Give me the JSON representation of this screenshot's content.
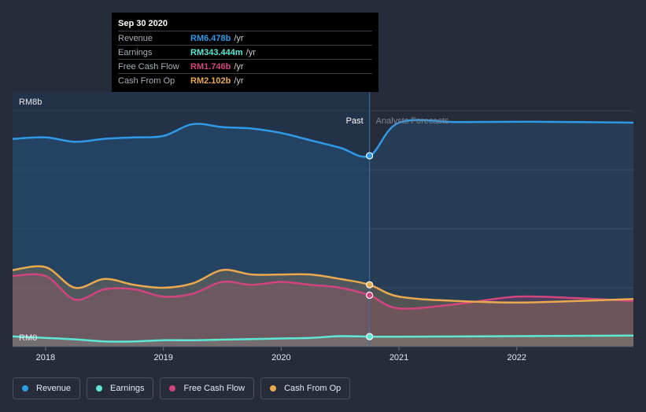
{
  "tooltip": {
    "date": "Sep 30 2020",
    "rows": [
      {
        "label": "Revenue",
        "value": "RM6.478b",
        "unit": "/yr",
        "color": "#2f9ae8"
      },
      {
        "label": "Earnings",
        "value": "RM343.444m",
        "unit": "/yr",
        "color": "#5ee8d3"
      },
      {
        "label": "Free Cash Flow",
        "value": "RM1.746b",
        "unit": "/yr",
        "color": "#d1457f"
      },
      {
        "label": "Cash From Op",
        "value": "RM2.102b",
        "unit": "/yr",
        "color": "#e8a94f"
      }
    ]
  },
  "labels": {
    "past": "Past",
    "forecast": "Analysts Forecasts"
  },
  "legend": [
    {
      "label": "Revenue",
      "color": "#2f9ae8"
    },
    {
      "label": "Earnings",
      "color": "#5ee8d3"
    },
    {
      "label": "Free Cash Flow",
      "color": "#d1457f"
    },
    {
      "label": "Cash From Op",
      "color": "#e8a94f"
    }
  ],
  "chart_data": {
    "type": "area",
    "y_tick_labels": [
      "RM8b",
      "RM0"
    ],
    "x_tick_labels": [
      "2018",
      "2019",
      "2020",
      "2021",
      "2022"
    ],
    "xlim": [
      2017.72,
      2022.99
    ],
    "ylim": [
      0,
      8
    ],
    "y_grid_values": [
      2,
      4,
      6,
      8
    ],
    "past_until": 2020.75,
    "series": [
      {
        "name": "Revenue",
        "color": "#2f9ae8",
        "points": [
          [
            2017.72,
            7.05
          ],
          [
            2018.0,
            7.1
          ],
          [
            2018.25,
            6.95
          ],
          [
            2018.5,
            7.05
          ],
          [
            2018.75,
            7.1
          ],
          [
            2019.0,
            7.15
          ],
          [
            2019.25,
            7.55
          ],
          [
            2019.5,
            7.45
          ],
          [
            2019.75,
            7.4
          ],
          [
            2020.0,
            7.25
          ],
          [
            2020.25,
            7.0
          ],
          [
            2020.5,
            6.75
          ],
          [
            2020.75,
            6.478
          ],
          [
            2021.0,
            7.6
          ],
          [
            2021.5,
            7.62
          ],
          [
            2022.0,
            7.63
          ],
          [
            2022.5,
            7.62
          ],
          [
            2022.99,
            7.6
          ]
        ]
      },
      {
        "name": "Earnings",
        "color": "#5ee8d3",
        "points": [
          [
            2017.72,
            0.35
          ],
          [
            2018.0,
            0.3
          ],
          [
            2018.25,
            0.25
          ],
          [
            2018.5,
            0.18
          ],
          [
            2018.75,
            0.18
          ],
          [
            2019.0,
            0.22
          ],
          [
            2019.25,
            0.22
          ],
          [
            2019.5,
            0.24
          ],
          [
            2019.75,
            0.26
          ],
          [
            2020.0,
            0.28
          ],
          [
            2020.25,
            0.3
          ],
          [
            2020.5,
            0.36
          ],
          [
            2020.75,
            0.343
          ],
          [
            2021.0,
            0.34
          ],
          [
            2021.5,
            0.35
          ],
          [
            2022.0,
            0.36
          ],
          [
            2022.5,
            0.37
          ],
          [
            2022.99,
            0.38
          ]
        ]
      },
      {
        "name": "Free Cash Flow",
        "color": "#d1457f",
        "points": [
          [
            2017.72,
            2.4
          ],
          [
            2018.0,
            2.4
          ],
          [
            2018.25,
            1.6
          ],
          [
            2018.5,
            1.95
          ],
          [
            2018.75,
            1.95
          ],
          [
            2019.0,
            1.7
          ],
          [
            2019.25,
            1.8
          ],
          [
            2019.5,
            2.2
          ],
          [
            2019.75,
            2.1
          ],
          [
            2020.0,
            2.2
          ],
          [
            2020.25,
            2.1
          ],
          [
            2020.5,
            2.0
          ],
          [
            2020.75,
            1.746
          ],
          [
            2021.0,
            1.3
          ],
          [
            2021.5,
            1.45
          ],
          [
            2022.0,
            1.7
          ],
          [
            2022.5,
            1.65
          ],
          [
            2022.99,
            1.55
          ]
        ]
      },
      {
        "name": "Cash From Op",
        "color": "#e8a94f",
        "points": [
          [
            2017.72,
            2.6
          ],
          [
            2018.0,
            2.7
          ],
          [
            2018.25,
            2.0
          ],
          [
            2018.5,
            2.3
          ],
          [
            2018.75,
            2.1
          ],
          [
            2019.0,
            2.0
          ],
          [
            2019.25,
            2.15
          ],
          [
            2019.5,
            2.6
          ],
          [
            2019.75,
            2.45
          ],
          [
            2020.0,
            2.45
          ],
          [
            2020.25,
            2.45
          ],
          [
            2020.5,
            2.3
          ],
          [
            2020.75,
            2.102
          ],
          [
            2021.0,
            1.7
          ],
          [
            2021.5,
            1.55
          ],
          [
            2022.0,
            1.5
          ],
          [
            2022.5,
            1.55
          ],
          [
            2022.99,
            1.62
          ]
        ]
      }
    ]
  }
}
